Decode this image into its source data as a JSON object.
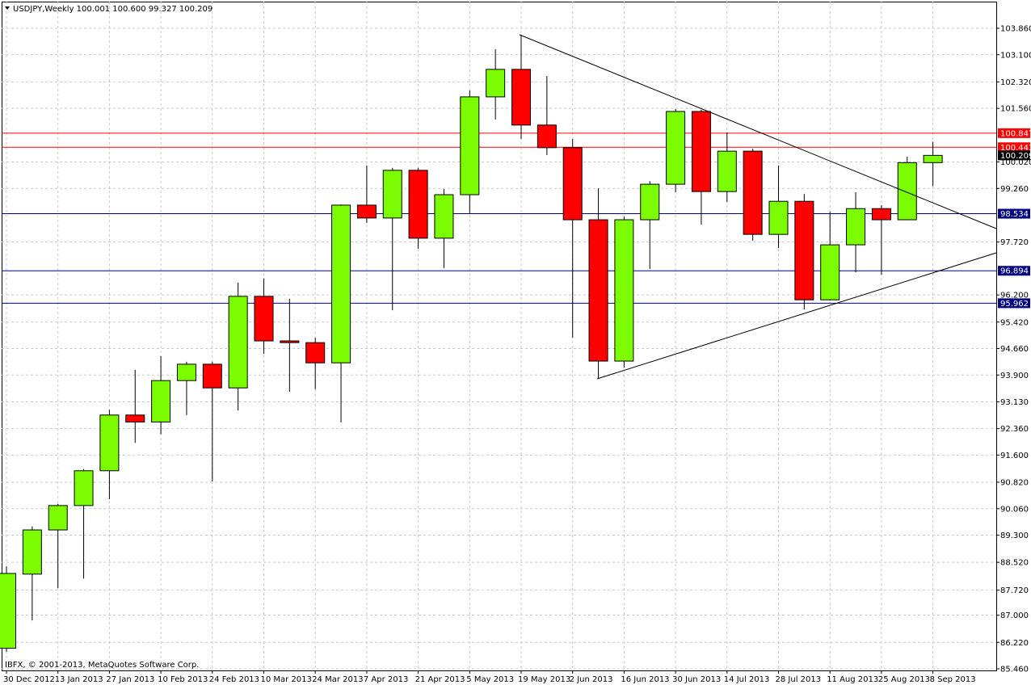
{
  "chart_data": {
    "type": "candlestick",
    "title": "USDJPY,Weekly  100.001 100.600 99.327 100.209",
    "footer": "IBFX, © 2001-2013, MetaQuotes Software Corp.",
    "categories": [
      "30 Dec 2012",
      null,
      "13 Jan 2013",
      null,
      "27 Jan 2013",
      null,
      "10 Feb 2013",
      null,
      "24 Feb 2013",
      null,
      "10 Mar 2013",
      null,
      "24 Mar 2013",
      null,
      "7 Apr 2013",
      null,
      "21 Apr 2013",
      null,
      "5 May 2013",
      null,
      "19 May 2013",
      null,
      "2 Jun 2013",
      null,
      "16 Jun 2013",
      null,
      "30 Jun 2013",
      null,
      "14 Jul 2013",
      null,
      "28 Jul 2013",
      null,
      "11 Aug 2013",
      null,
      "25 Aug 2013",
      null,
      "8 Sep 2013"
    ],
    "open": [
      86.05,
      88.18,
      89.45,
      90.15,
      91.15,
      92.75,
      92.55,
      93.74,
      94.21,
      93.53,
      96.16,
      94.88,
      94.83,
      94.25,
      98.78,
      98.41,
      99.78,
      97.83,
      99.08,
      101.89,
      102.68,
      101.08,
      100.43,
      98.36,
      94.3,
      98.36,
      99.38,
      101.47,
      99.17,
      100.33,
      97.94,
      98.89,
      96.06,
      97.64,
      98.68,
      98.36,
      100.001
    ],
    "high": [
      88.4,
      89.55,
      90.2,
      91.2,
      92.9,
      94.05,
      94.44,
      94.28,
      94.28,
      96.55,
      96.67,
      96.09,
      94.97,
      98.8,
      99.92,
      99.85,
      99.85,
      99.24,
      102.07,
      103.26,
      103.67,
      102.49,
      100.68,
      99.26,
      98.45,
      99.47,
      101.54,
      101.52,
      100.87,
      100.4,
      99.92,
      99.1,
      98.59,
      99.15,
      98.78,
      100.17,
      100.6
    ],
    "low": [
      85.95,
      86.85,
      87.78,
      88.05,
      90.33,
      91.95,
      92.2,
      92.75,
      90.84,
      92.88,
      94.51,
      93.42,
      93.49,
      92.54,
      98.27,
      95.76,
      97.53,
      96.97,
      98.55,
      101.24,
      100.68,
      100.22,
      94.97,
      93.79,
      94.11,
      96.95,
      99.15,
      98.22,
      98.87,
      97.76,
      97.55,
      95.78,
      96.04,
      96.85,
      96.78,
      98.36,
      99.327
    ],
    "close": [
      88.2,
      89.45,
      90.15,
      91.15,
      92.75,
      92.55,
      93.74,
      94.21,
      93.53,
      96.16,
      94.88,
      94.83,
      94.25,
      98.78,
      98.41,
      99.78,
      97.83,
      99.08,
      101.89,
      102.68,
      101.08,
      100.43,
      98.36,
      94.3,
      98.36,
      99.38,
      101.47,
      99.17,
      100.33,
      97.94,
      98.89,
      96.06,
      97.64,
      98.68,
      98.36,
      100.001,
      100.209
    ],
    "up_color": "#7cfc00",
    "down_color": "#ff0000",
    "ylim": [
      85.414,
      104.626
    ],
    "yticks": [
      {
        "value": 103.86,
        "label": "103.860"
      },
      {
        "value": 103.1,
        "label": "103.100"
      },
      {
        "value": 102.32,
        "label": "102.320"
      },
      {
        "value": 101.56,
        "label": "101.560"
      },
      {
        "value": 100.02,
        "label": "100.020"
      },
      {
        "value": 99.26,
        "label": "99.260"
      },
      {
        "value": 97.72,
        "label": "97.720"
      },
      {
        "value": 96.2,
        "label": "96.200"
      },
      {
        "value": 95.42,
        "label": "95.420"
      },
      {
        "value": 94.66,
        "label": "94.660"
      },
      {
        "value": 93.9,
        "label": "93.900"
      },
      {
        "value": 93.13,
        "label": "93.130"
      },
      {
        "value": 92.36,
        "label": "92.360"
      },
      {
        "value": 91.6,
        "label": "91.600"
      },
      {
        "value": 90.82,
        "label": "90.820"
      },
      {
        "value": 90.06,
        "label": "90.060"
      },
      {
        "value": 89.3,
        "label": "89.300"
      },
      {
        "value": 88.52,
        "label": "88.520"
      },
      {
        "value": 87.72,
        "label": "87.720"
      },
      {
        "value": 87,
        "label": "87.000"
      },
      {
        "value": 86.22,
        "label": "86.220"
      },
      {
        "value": 85.46,
        "label": "85.460"
      }
    ],
    "grid": true,
    "levels": [
      {
        "value": 100.847,
        "color": "#ff0000"
      },
      {
        "value": 100.443,
        "color": "#ff0000"
      },
      {
        "value": 98.534,
        "color": "#000080"
      },
      {
        "value": 96.894,
        "color": "#000080"
      },
      {
        "value": 95.962,
        "color": "#000080"
      },
      {
        "value": 100.209,
        "color": "#000000"
      }
    ]
  }
}
